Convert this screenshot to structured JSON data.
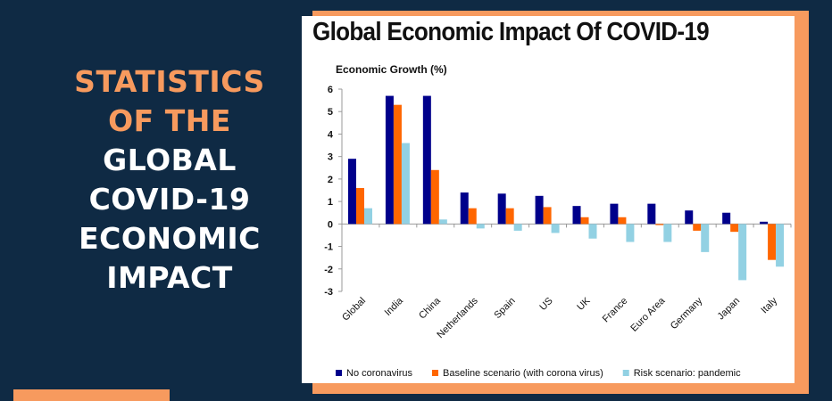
{
  "headline": {
    "line1": "STATISTICS",
    "line2": "OF THE",
    "line3": "GLOBAL",
    "line4": "COVID-19",
    "line5": "ECONOMIC",
    "line6": "IMPACT"
  },
  "colors": {
    "background": "#0f2a44",
    "accent": "#f79a5e"
  },
  "chart_data": {
    "type": "bar",
    "title": "Global Economic Impact Of COVID-19",
    "ylabel": "Economic Growth (%)",
    "xlabel": "",
    "ylim": [
      -3,
      6
    ],
    "yticks": [
      6,
      5,
      4,
      3,
      2,
      1,
      0,
      -1,
      -2,
      -3
    ],
    "grid": false,
    "legend": "bottom",
    "categories": [
      "Global",
      "India",
      "China",
      "Netherlands",
      "Spain",
      "US",
      "UK",
      "France",
      "Euro Area",
      "Germany",
      "Japan",
      "Italy"
    ],
    "series": [
      {
        "name": "No coronavirus",
        "color": "#00008b",
        "values": [
          2.9,
          5.7,
          5.7,
          1.4,
          1.35,
          1.25,
          0.8,
          0.9,
          0.9,
          0.6,
          0.5,
          0.1
        ]
      },
      {
        "name": "Baseline scenario (with corona virus)",
        "color": "#ff6600",
        "values": [
          1.6,
          5.3,
          2.4,
          0.7,
          0.7,
          0.75,
          0.3,
          0.3,
          -0.05,
          -0.3,
          -0.35,
          -1.6
        ]
      },
      {
        "name": "Risk scenario: pandemic",
        "color": "#92d1e3",
        "values": [
          0.7,
          3.6,
          0.2,
          -0.2,
          -0.3,
          -0.4,
          -0.65,
          -0.8,
          -0.8,
          -1.25,
          -2.5,
          -1.9
        ]
      }
    ]
  }
}
